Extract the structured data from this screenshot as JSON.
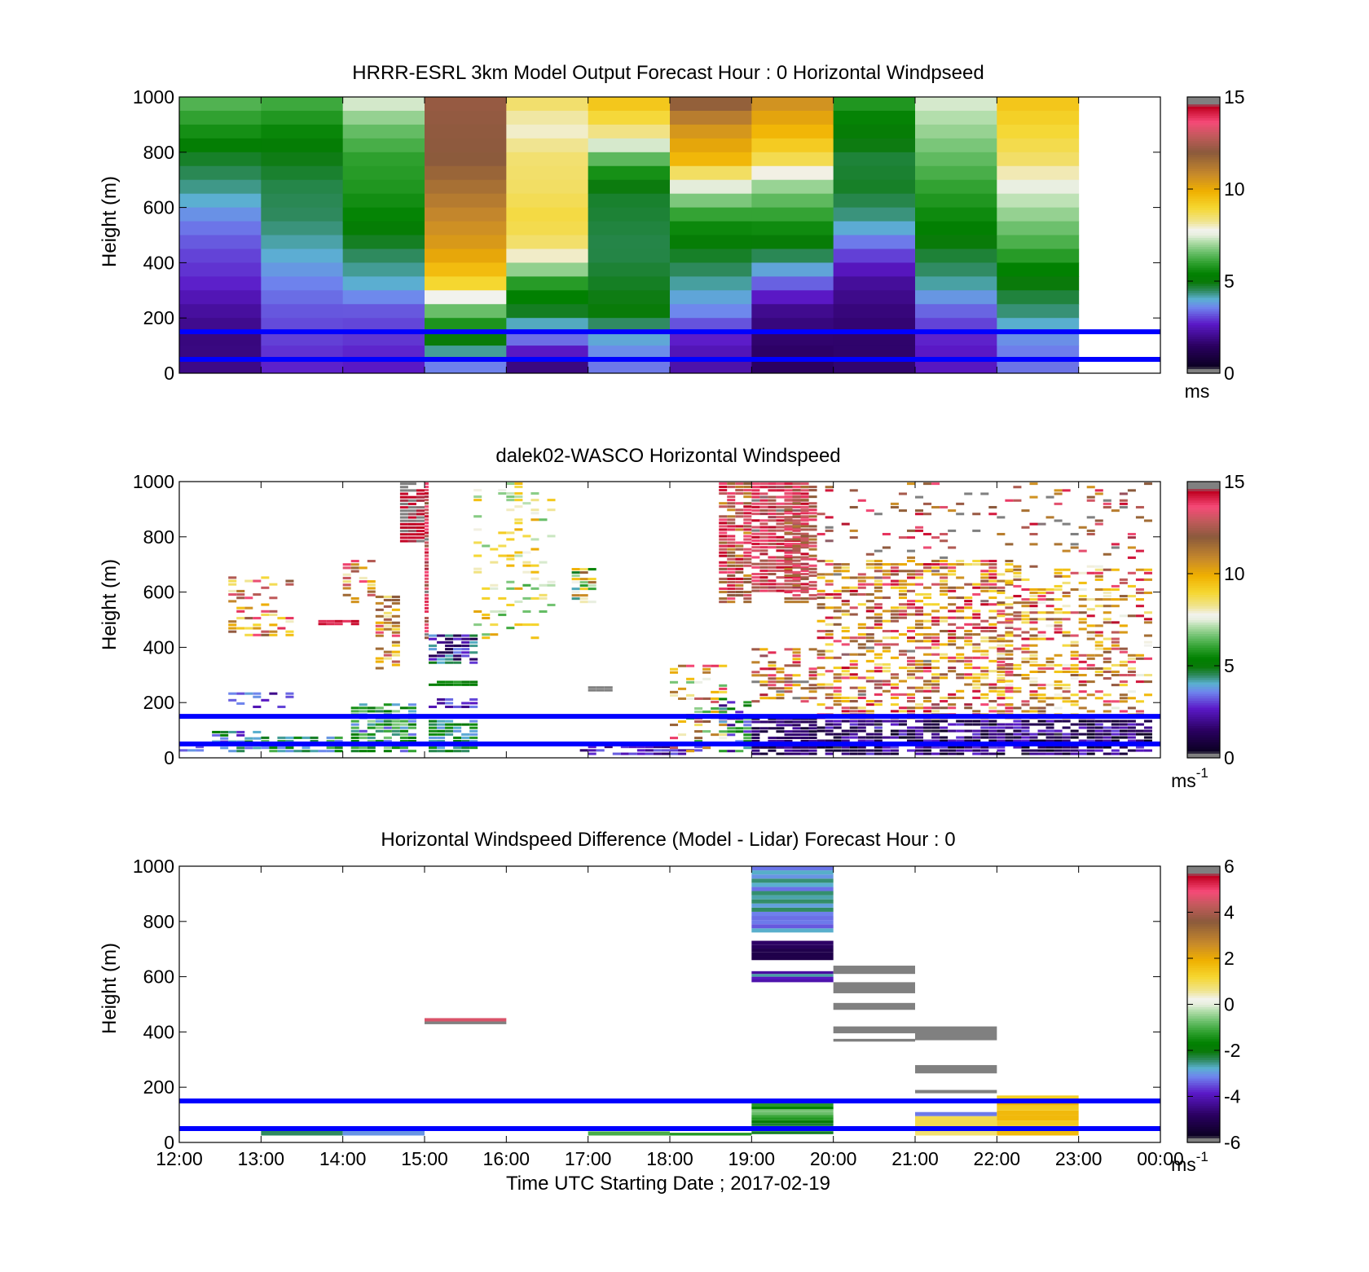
{
  "colors": {
    "ref_line": "#0000ff",
    "frame": "#000000",
    "missing": "#ffffff"
  },
  "chart_data": [
    {
      "type": "heatmap",
      "title": "HRRR-ESRL 3km Model Output   Forecast Hour : 0 Horizontal Windpseed",
      "ylabel": "Height (m)",
      "ylim": [
        0,
        1000
      ],
      "yticks": [
        "0",
        "200",
        "400",
        "600",
        "800",
        "1000"
      ],
      "x_hours": [
        12,
        13,
        14,
        15,
        16,
        17,
        18,
        19,
        20,
        21,
        22
      ],
      "colorbar": {
        "min": 0,
        "max": 15,
        "ticks": [
          "0",
          "5",
          "10",
          "15"
        ],
        "unit": "ms",
        "unit_sup": "",
        "palette": "speed"
      },
      "ref_lines_m": [
        50,
        150
      ],
      "profiles_note": "hourly columns, values top (1000 m) to bottom (0 m) in 10 levels",
      "profiles": [
        [
          6.5,
          5.8,
          4.8,
          4.3,
          3.6,
          3.1,
          2.8,
          2.2,
          1.8,
          2.0
        ],
        [
          6.3,
          5.6,
          4.9,
          4.6,
          4.5,
          4.1,
          3.6,
          3.2,
          3.0,
          2.7
        ],
        [
          7.6,
          6.6,
          6.0,
          5.8,
          5.4,
          4.6,
          4.1,
          3.2,
          2.9,
          2.6
        ],
        [
          12.2,
          12.1,
          12.0,
          11.4,
          10.8,
          10.3,
          9.2,
          6.5,
          4.8,
          3.2
        ],
        [
          8.7,
          7.9,
          8.5,
          8.6,
          8.9,
          8.4,
          6.0,
          4.8,
          3.2,
          1.5
        ],
        [
          9.6,
          8.6,
          6.5,
          4.8,
          4.7,
          4.6,
          4.8,
          5.0,
          3.8,
          3.4
        ],
        [
          12.2,
          10.6,
          9.8,
          7.3,
          5.8,
          4.9,
          4.3,
          3.6,
          2.6,
          2.3
        ],
        [
          10.8,
          9.9,
          8.8,
          6.8,
          5.9,
          4.8,
          3.4,
          2.0,
          1.6,
          1.5
        ],
        [
          6.0,
          5.2,
          4.7,
          4.8,
          4.3,
          3.2,
          2.2,
          1.8,
          1.6,
          1.7
        ],
        [
          7.5,
          7.0,
          6.5,
          6.0,
          5.5,
          4.8,
          4.3,
          3.3,
          2.7,
          2.6
        ],
        [
          9.5,
          9.0,
          8.6,
          7.5,
          6.8,
          6.1,
          5.0,
          4.4,
          3.6,
          3.4
        ]
      ]
    },
    {
      "type": "heatmap",
      "title": "dalek02-WASCO  Horizontal Windspeed",
      "ylabel": "Height (m)",
      "ylim": [
        0,
        1000
      ],
      "yticks": [
        "0",
        "200",
        "400",
        "600",
        "800",
        "1000"
      ],
      "colorbar": {
        "min": 0,
        "max": 15,
        "ticks": [
          "0",
          "5",
          "10",
          "15"
        ],
        "unit": "ms",
        "unit_sup": "-1",
        "palette": "speed"
      },
      "ref_lines_m": [
        50,
        150
      ],
      "observation_note": "sparse lidar retrievals, 12:00-00:00 UTC",
      "clusters": [
        {
          "t0": 12.0,
          "t1": 12.3,
          "z0": 10,
          "z1": 60,
          "mean": 3,
          "spread": 1,
          "density": 0.5
        },
        {
          "t0": 12.4,
          "t1": 13.0,
          "z0": 20,
          "z1": 100,
          "mean": 4,
          "spread": 1.5,
          "density": 0.6
        },
        {
          "t0": 12.6,
          "t1": 13.4,
          "z0": 180,
          "z1": 240,
          "mean": 3,
          "spread": 1,
          "density": 0.4
        },
        {
          "t0": 12.6,
          "t1": 13.4,
          "z0": 440,
          "z1": 660,
          "mean": 11,
          "spread": 3,
          "density": 0.4
        },
        {
          "t0": 13.0,
          "t1": 14.0,
          "z0": 20,
          "z1": 80,
          "mean": 5,
          "spread": 1.5,
          "density": 0.75
        },
        {
          "t0": 13.7,
          "t1": 14.2,
          "z0": 480,
          "z1": 500,
          "mean": 14,
          "spread": 0.5,
          "density": 0.9
        },
        {
          "t0": 14.0,
          "t1": 14.4,
          "z0": 560,
          "z1": 720,
          "mean": 11,
          "spread": 3,
          "density": 0.35
        },
        {
          "t0": 14.1,
          "t1": 14.9,
          "z0": 20,
          "z1": 200,
          "mean": 5,
          "spread": 2,
          "density": 0.75
        },
        {
          "t0": 14.4,
          "t1": 14.7,
          "z0": 320,
          "z1": 590,
          "mean": 11,
          "spread": 3,
          "density": 0.5
        },
        {
          "t0": 14.7,
          "t1": 15.0,
          "z0": 780,
          "z1": 1000,
          "mean": 14.6,
          "spread": 0.3,
          "density": 0.95
        },
        {
          "t0": 15.0,
          "t1": 15.05,
          "z0": 430,
          "z1": 1000,
          "mean": 13.5,
          "spread": 1.5,
          "density": 0.95
        },
        {
          "t0": 15.05,
          "t1": 15.65,
          "z0": 20,
          "z1": 140,
          "mean": 4.8,
          "spread": 1.2,
          "density": 0.85
        },
        {
          "t0": 15.05,
          "t1": 15.65,
          "z0": 180,
          "z1": 220,
          "mean": 3,
          "spread": 1,
          "density": 0.7
        },
        {
          "t0": 15.05,
          "t1": 15.65,
          "z0": 260,
          "z1": 280,
          "mean": 5.5,
          "spread": 0.5,
          "density": 0.9
        },
        {
          "t0": 15.05,
          "t1": 15.65,
          "z0": 340,
          "z1": 450,
          "mean": 3,
          "spread": 2,
          "density": 0.8
        },
        {
          "t0": 15.6,
          "t1": 16.6,
          "z0": 430,
          "z1": 1000,
          "mean": 8.2,
          "spread": 2,
          "density": 0.2
        },
        {
          "t0": 16.8,
          "t1": 17.1,
          "z0": 560,
          "z1": 690,
          "mean": 8,
          "spread": 4,
          "density": 0.6
        },
        {
          "t0": 17.0,
          "t1": 17.3,
          "z0": 240,
          "z1": 260,
          "mean": 15,
          "spread": 0.2,
          "density": 0.9
        },
        {
          "t0": 16.9,
          "t1": 18.4,
          "z0": 10,
          "z1": 60,
          "mean": 2.5,
          "spread": 1,
          "density": 0.65
        },
        {
          "t0": 18.0,
          "t1": 18.7,
          "z0": 20,
          "z1": 340,
          "mean": 10,
          "spread": 4,
          "density": 0.35
        },
        {
          "t0": 18.6,
          "t1": 19.0,
          "z0": 20,
          "z1": 220,
          "mean": 4,
          "spread": 2.5,
          "density": 0.6
        },
        {
          "t0": 18.6,
          "t1": 19.0,
          "z0": 560,
          "z1": 1000,
          "mean": 12.5,
          "spread": 2,
          "density": 0.85
        },
        {
          "t0": 19.0,
          "t1": 19.8,
          "z0": 10,
          "z1": 160,
          "mean": 1.4,
          "spread": 0.9,
          "density": 0.85
        },
        {
          "t0": 19.0,
          "t1": 19.7,
          "z0": 600,
          "z1": 1000,
          "mean": 13.5,
          "spread": 1.2,
          "density": 0.85
        },
        {
          "t0": 19.0,
          "t1": 19.8,
          "z0": 200,
          "z1": 400,
          "mean": 12,
          "spread": 3,
          "density": 0.5
        },
        {
          "t0": 19.4,
          "t1": 19.8,
          "z0": 560,
          "z1": 1000,
          "mean": 12.5,
          "spread": 1.5,
          "density": 0.6
        },
        {
          "t0": 19.8,
          "t1": 23.9,
          "z0": 10,
          "z1": 140,
          "mean": 1.7,
          "spread": 1.4,
          "density": 0.75
        },
        {
          "t0": 19.8,
          "t1": 22.2,
          "z0": 140,
          "z1": 720,
          "mean": 11.5,
          "spread": 3.2,
          "density": 0.5
        },
        {
          "t0": 22.0,
          "t1": 23.9,
          "z0": 140,
          "z1": 700,
          "mean": 11,
          "spread": 3.5,
          "density": 0.4
        },
        {
          "t0": 19.8,
          "t1": 23.9,
          "z0": 720,
          "z1": 1000,
          "mean": 13,
          "spread": 2.5,
          "density": 0.12
        }
      ]
    },
    {
      "type": "heatmap",
      "title": "Horizontal Windspeed Difference (Model - Lidar) Forecast Hour : 0",
      "ylabel": "Height (m)",
      "xlabel": "Time UTC  Starting Date ; 2017-02-19",
      "ylim": [
        0,
        1000
      ],
      "yticks": [
        "0",
        "200",
        "400",
        "600",
        "800",
        "1000"
      ],
      "xticks": [
        "12:00",
        "13:00",
        "14:00",
        "15:00",
        "16:00",
        "17:00",
        "18:00",
        "19:00",
        "20:00",
        "21:00",
        "22:00",
        "23:00",
        "00:00"
      ],
      "colorbar": {
        "min": -6,
        "max": 6,
        "ticks": [
          "-6",
          "-4",
          "-2",
          "0",
          "2",
          "4",
          "6"
        ],
        "unit": "ms",
        "unit_sup": "-1",
        "palette": "diff"
      },
      "ref_lines_m": [
        50,
        150
      ],
      "cells": [
        {
          "t0": 13,
          "t1": 14,
          "z0": 25,
          "z1": 45,
          "v": -2.4
        },
        {
          "t0": 14,
          "t1": 15,
          "z0": 25,
          "z1": 50,
          "v": -3.0
        },
        {
          "t0": 15,
          "t1": 16,
          "z0": 438,
          "z1": 450,
          "v": 4.6
        },
        {
          "t0": 15,
          "t1": 16,
          "z0": 428,
          "z1": 438,
          "v": 6.0
        },
        {
          "t0": 17,
          "t1": 18,
          "z0": 25,
          "z1": 40,
          "v": -1.0
        },
        {
          "t0": 18,
          "t1": 19,
          "z0": 25,
          "z1": 35,
          "v": -1.3
        },
        {
          "t0": 19,
          "t1": 20,
          "z0": 30,
          "z1": 150,
          "v": -1.4,
          "spread": 0.8,
          "stripes": 12
        },
        {
          "t0": 19,
          "t1": 20,
          "z0": 760,
          "z1": 1000,
          "v": -3.0,
          "spread": 0.6,
          "stripes": 16
        },
        {
          "t0": 19,
          "t1": 20,
          "z0": 660,
          "z1": 730,
          "v": -4.9,
          "spread": 0.3,
          "stripes": 5
        },
        {
          "t0": 19,
          "t1": 20,
          "z0": 580,
          "z1": 620,
          "v": -3.6,
          "spread": 1.0,
          "stripes": 4
        },
        {
          "t0": 20,
          "t1": 21,
          "z0": 610,
          "z1": 640,
          "v": 6.0
        },
        {
          "t0": 20,
          "t1": 21,
          "z0": 540,
          "z1": 580,
          "v": 6.0
        },
        {
          "t0": 20,
          "t1": 21,
          "z0": 480,
          "z1": 505,
          "v": 6.0
        },
        {
          "t0": 20,
          "t1": 21,
          "z0": 395,
          "z1": 420,
          "v": 6.0
        },
        {
          "t0": 20,
          "t1": 21,
          "z0": 365,
          "z1": 375,
          "v": 6.0
        },
        {
          "t0": 21,
          "t1": 22,
          "z0": 370,
          "z1": 420,
          "v": 6.0
        },
        {
          "t0": 21,
          "t1": 22,
          "z0": 250,
          "z1": 280,
          "v": 6.0
        },
        {
          "t0": 21,
          "t1": 22,
          "z0": 178,
          "z1": 190,
          "v": -6.0
        },
        {
          "t0": 21,
          "t1": 22,
          "z0": 95,
          "z1": 110,
          "v": -3.2
        },
        {
          "t0": 21,
          "t1": 22,
          "z0": 55,
          "z1": 95,
          "v": 1.0
        },
        {
          "t0": 21,
          "t1": 22,
          "z0": 25,
          "z1": 55,
          "v": 0.8
        },
        {
          "t0": 22,
          "t1": 23,
          "z0": 25,
          "z1": 170,
          "v": 1.6,
          "spread": 0.3,
          "stripes": 8
        }
      ]
    }
  ]
}
